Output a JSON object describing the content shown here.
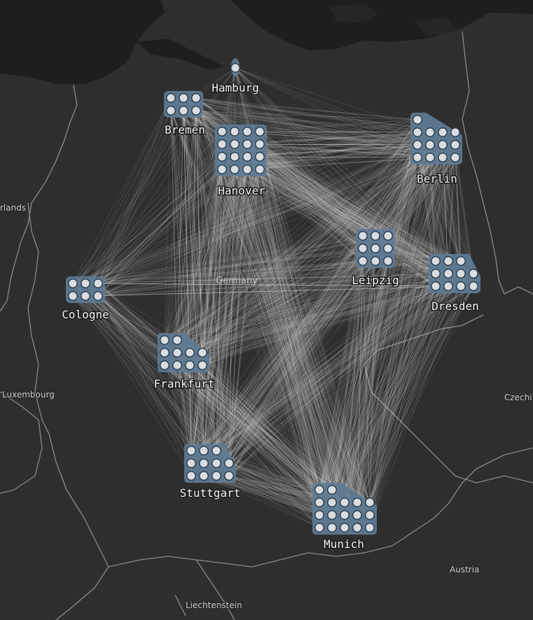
{
  "map": {
    "country_label": "Germany",
    "place_labels": [
      "rlands",
      "Luxembourg",
      "Czechi",
      "Austria",
      "Liechtenstein"
    ],
    "colors": {
      "land": "#2e2e2f",
      "water": "#1d1e20",
      "border": "#8a8a8a",
      "cluster_fill": "#5d7b94",
      "node_fill": "#d9dde2",
      "node_stroke": "#2a3a48",
      "edge": "#d9d9d9"
    }
  },
  "cities": [
    {
      "name": "Hamburg",
      "label": "Hamburg",
      "nodes": 1
    },
    {
      "name": "Bremen",
      "label": "Bremen",
      "nodes": 6
    },
    {
      "name": "Hanover",
      "label": "Hanover",
      "nodes": 16
    },
    {
      "name": "Berlin",
      "label": "Berlin",
      "nodes": 13
    },
    {
      "name": "Leipzig",
      "label": "Leipzig",
      "nodes": 9
    },
    {
      "name": "Dresden",
      "label": "Dresden",
      "nodes": 11
    },
    {
      "name": "Cologne",
      "label": "Cologne",
      "nodes": 6
    },
    {
      "name": "Frankfurt",
      "label": "Frankfurt",
      "nodes": 10
    },
    {
      "name": "Stuttgart",
      "label": "Stuttgart",
      "nodes": 11
    },
    {
      "name": "Munich",
      "label": "Munich",
      "nodes": 17
    }
  ]
}
